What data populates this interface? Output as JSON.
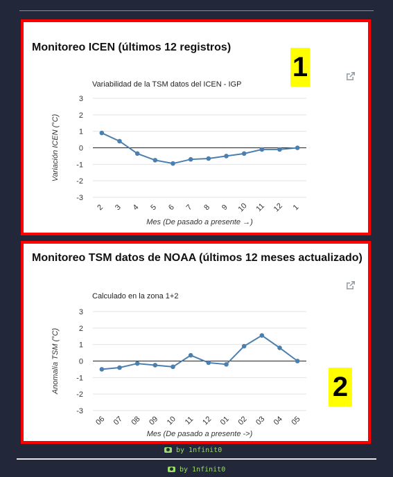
{
  "panels": [
    {
      "title": "Monitoreo ICEN (últimos 12 registros)",
      "badge": "1",
      "chart_data": {
        "type": "line",
        "title": "Variabilidad de la TSM datos del ICEN - IGP",
        "xlabel": "Mes (De pasado a presente →)",
        "ylabel": "Variación ICEN (°C)",
        "categories": [
          "2",
          "3",
          "4",
          "5",
          "6",
          "7",
          "8",
          "9",
          "10",
          "11",
          "12",
          "1"
        ],
        "values": [
          0.9,
          0.4,
          -0.35,
          -0.75,
          -0.95,
          -0.7,
          -0.65,
          -0.5,
          -0.35,
          -0.1,
          -0.1,
          0.0
        ],
        "ylim": [
          -3,
          3
        ],
        "yticks": [
          "3",
          "2",
          "1",
          "0",
          "-1",
          "-2",
          "-3"
        ],
        "grid": true,
        "line_color": "#4a7fae"
      }
    },
    {
      "title": "Monitoreo TSM datos de NOAA (últimos 12 meses actualizado)",
      "badge": "2",
      "chart_data": {
        "type": "line",
        "title": "Calculado en la zona 1+2",
        "xlabel": "Mes (De pasado a presente ->)",
        "ylabel": "Anomalía TSM (°C)",
        "categories": [
          "06",
          "07",
          "08",
          "09",
          "10",
          "11",
          "12",
          "01",
          "02",
          "03",
          "04",
          "05"
        ],
        "values": [
          -0.5,
          -0.4,
          -0.15,
          -0.25,
          -0.35,
          0.35,
          -0.1,
          -0.2,
          0.9,
          1.55,
          0.8,
          0.0
        ],
        "ylim": [
          -3,
          3
        ],
        "yticks": [
          "3",
          "2",
          "1",
          "0",
          "-1",
          "-2",
          "-3"
        ],
        "grid": true,
        "line_color": "#4a7fae"
      }
    }
  ],
  "credits": [
    "by 1nfinit0",
    "by 1nfinit0"
  ],
  "icons": {
    "external": "external-link-icon",
    "credit": "camera-icon"
  }
}
